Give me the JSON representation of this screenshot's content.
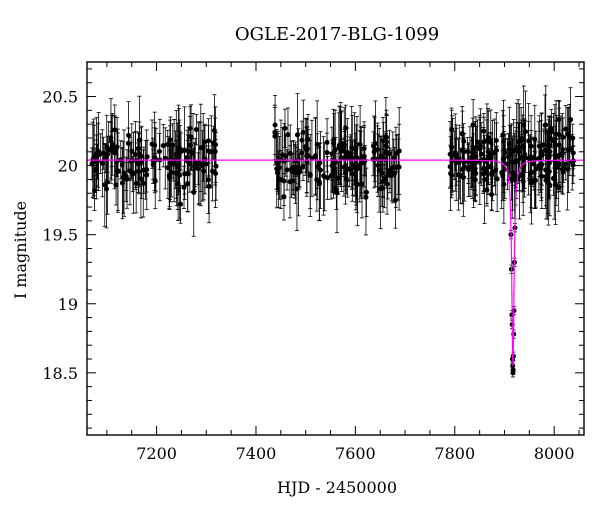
{
  "chart_data": {
    "type": "scatter",
    "title": "OGLE-2017-BLG-1099",
    "xlabel": "HJD - 2450000",
    "ylabel": "I magnitude",
    "xlim": [
      7060,
      8060
    ],
    "ylim": [
      20.75,
      18.05
    ],
    "y_inverted": true,
    "grid": false,
    "x_ticks": [
      7200,
      7400,
      7600,
      7800,
      8000
    ],
    "y_ticks": [
      18.5,
      19,
      19.5,
      20,
      20.5
    ],
    "x_tick_labels": [
      "7200",
      "7400",
      "7600",
      "7800",
      "8000"
    ],
    "y_tick_labels": [
      "18.5",
      "19",
      "19.5",
      "20",
      "20.5"
    ],
    "colors": {
      "points": "#000000",
      "model": "#ff00ff",
      "frame": "#000000"
    },
    "model": {
      "name": "microlensing fit",
      "baseline": 20.04,
      "t0": 7917,
      "peak": 18.55,
      "width": 2.8
    },
    "seasons": [
      {
        "start": 7068,
        "end": 7320,
        "count": 150,
        "mean": 20.03,
        "scatter": 0.18
      },
      {
        "start": 7435,
        "end": 7690,
        "count": 170,
        "mean": 20.03,
        "scatter": 0.18
      },
      {
        "start": 7790,
        "end": 8040,
        "count": 210,
        "mean": 20.05,
        "scatter": 0.19
      }
    ],
    "peak_points": [
      {
        "x": 7913,
        "y": 19.5
      },
      {
        "x": 7914,
        "y": 19.25
      },
      {
        "x": 7915,
        "y": 18.92
      },
      {
        "x": 7915.5,
        "y": 18.85
      },
      {
        "x": 7916,
        "y": 18.6
      },
      {
        "x": 7916.5,
        "y": 18.55
      },
      {
        "x": 7917,
        "y": 18.5
      },
      {
        "x": 7917.5,
        "y": 18.52
      },
      {
        "x": 7918,
        "y": 18.62
      },
      {
        "x": 7918.5,
        "y": 18.78
      },
      {
        "x": 7919,
        "y": 18.95
      },
      {
        "x": 7920,
        "y": 19.3
      },
      {
        "x": 7921,
        "y": 19.55
      }
    ]
  }
}
